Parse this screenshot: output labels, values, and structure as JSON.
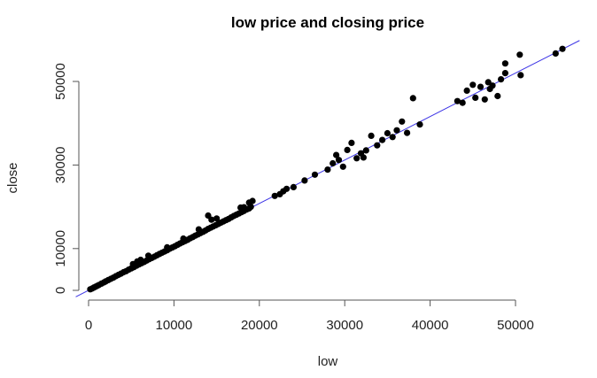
{
  "chart_data": {
    "type": "scatter",
    "title": "low price and closing price",
    "xlabel": "low",
    "ylabel": "close",
    "xlim": [
      0,
      56000
    ],
    "ylim": [
      0,
      56000
    ],
    "x_ticks": [
      0,
      10000,
      20000,
      30000,
      40000,
      50000
    ],
    "y_ticks": [
      0,
      10000,
      30000,
      50000
    ],
    "x_tick_labels": [
      "0",
      "10000",
      "20000",
      "30000",
      "40000",
      "50000"
    ],
    "y_tick_labels": [
      "0",
      "10000",
      "30000",
      "50000"
    ],
    "grid": false,
    "legend": "none",
    "point_color": "#000000",
    "fit_line_color": "#3d35e6",
    "fit_line": {
      "intercept": 0,
      "slope": 1.04
    },
    "points": [
      [
        200,
        250
      ],
      [
        400,
        420
      ],
      [
        600,
        650
      ],
      [
        800,
        850
      ],
      [
        1000,
        1050
      ],
      [
        1200,
        1280
      ],
      [
        1500,
        1600
      ],
      [
        1800,
        1900
      ],
      [
        2000,
        2150
      ],
      [
        2300,
        2450
      ],
      [
        2600,
        2750
      ],
      [
        2900,
        3050
      ],
      [
        3200,
        3400
      ],
      [
        3500,
        3700
      ],
      [
        3800,
        4000
      ],
      [
        4100,
        4350
      ],
      [
        4400,
        4600
      ],
      [
        4700,
        4950
      ],
      [
        5000,
        5250
      ],
      [
        5300,
        5550
      ],
      [
        5600,
        5900
      ],
      [
        5900,
        6200
      ],
      [
        6200,
        6500
      ],
      [
        6500,
        6800
      ],
      [
        6800,
        7150
      ],
      [
        7100,
        7450
      ],
      [
        7400,
        7750
      ],
      [
        7700,
        8050
      ],
      [
        8000,
        8400
      ],
      [
        8300,
        8700
      ],
      [
        8600,
        9000
      ],
      [
        8900,
        9300
      ],
      [
        9200,
        9600
      ],
      [
        9500,
        9950
      ],
      [
        9800,
        10250
      ],
      [
        10100,
        10550
      ],
      [
        10400,
        10900
      ],
      [
        10700,
        11200
      ],
      [
        11000,
        11500
      ],
      [
        11300,
        11800
      ],
      [
        11600,
        12100
      ],
      [
        11900,
        12450
      ],
      [
        12200,
        12750
      ],
      [
        12500,
        13100
      ],
      [
        12800,
        13400
      ],
      [
        13100,
        13700
      ],
      [
        13400,
        14000
      ],
      [
        13700,
        14350
      ],
      [
        14000,
        14700
      ],
      [
        14300,
        15000
      ],
      [
        14600,
        15300
      ],
      [
        14900,
        15600
      ],
      [
        15200,
        15900
      ],
      [
        15500,
        16200
      ],
      [
        15800,
        16500
      ],
      [
        16100,
        16800
      ],
      [
        16400,
        17100
      ],
      [
        16700,
        17450
      ],
      [
        17000,
        17800
      ],
      [
        17300,
        18100
      ],
      [
        17600,
        18400
      ],
      [
        17900,
        18700
      ],
      [
        18200,
        19000
      ],
      [
        18500,
        19350
      ],
      [
        18800,
        19600
      ],
      [
        19000,
        20000
      ],
      [
        5200,
        6300
      ],
      [
        5700,
        6900
      ],
      [
        6100,
        7300
      ],
      [
        7000,
        8300
      ],
      [
        9200,
        10300
      ],
      [
        11100,
        12400
      ],
      [
        12900,
        14600
      ],
      [
        14000,
        17900
      ],
      [
        14400,
        16900
      ],
      [
        15000,
        17200
      ],
      [
        17800,
        19800
      ],
      [
        18200,
        19900
      ],
      [
        18800,
        21000
      ],
      [
        19200,
        21400
      ],
      [
        21800,
        22600
      ],
      [
        22400,
        23000
      ],
      [
        22800,
        23700
      ],
      [
        23200,
        24300
      ],
      [
        24000,
        24700
      ],
      [
        25300,
        26300
      ],
      [
        26500,
        27700
      ],
      [
        28000,
        28900
      ],
      [
        28600,
        30400
      ],
      [
        29000,
        32400
      ],
      [
        29300,
        31200
      ],
      [
        29800,
        29600
      ],
      [
        30300,
        33600
      ],
      [
        30800,
        35300
      ],
      [
        31400,
        31600
      ],
      [
        31900,
        32800
      ],
      [
        32200,
        31800
      ],
      [
        32500,
        33500
      ],
      [
        33100,
        37000
      ],
      [
        33800,
        34700
      ],
      [
        34400,
        36000
      ],
      [
        35000,
        37600
      ],
      [
        35600,
        36700
      ],
      [
        36100,
        38300
      ],
      [
        36700,
        40400
      ],
      [
        37300,
        37700
      ],
      [
        38000,
        46000
      ],
      [
        38800,
        39700
      ],
      [
        43200,
        45300
      ],
      [
        43800,
        44900
      ],
      [
        44300,
        47800
      ],
      [
        45000,
        49200
      ],
      [
        45300,
        46100
      ],
      [
        45900,
        48700
      ],
      [
        46400,
        45700
      ],
      [
        46800,
        49800
      ],
      [
        47300,
        49000
      ],
      [
        47900,
        46500
      ],
      [
        48300,
        50500
      ],
      [
        48800,
        52000
      ],
      [
        48800,
        54300
      ],
      [
        50500,
        56400
      ],
      [
        50600,
        51500
      ],
      [
        54700,
        56700
      ],
      [
        55500,
        57800
      ],
      [
        47000,
        48200
      ]
    ]
  }
}
